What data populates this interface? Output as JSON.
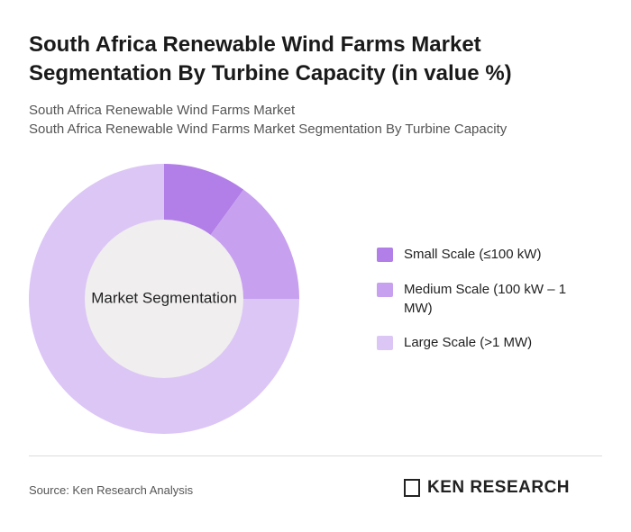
{
  "chart_data": {
    "type": "donut",
    "title": "South Africa Renewable Wind Farms Market Segmentation By Turbine Capacity (in value %)",
    "subtitle": [
      "South Africa Renewable Wind Farms Market",
      "South Africa Renewable Wind Farms Market Segmentation By Turbine Capacity"
    ],
    "center_label": "Market Segmentation",
    "categories": [
      "Small Scale (≤100 kW)",
      "Medium Scale (100 kW – 1 MW)",
      "Large Scale (>1 MW)"
    ],
    "values": [
      10,
      15,
      75
    ],
    "colors": [
      "#b27ee8",
      "#c7a0ef",
      "#dcc6f6"
    ],
    "legend": "right"
  },
  "source": "Source: Ken Research Analysis",
  "brand": "KEN RESEARCH"
}
